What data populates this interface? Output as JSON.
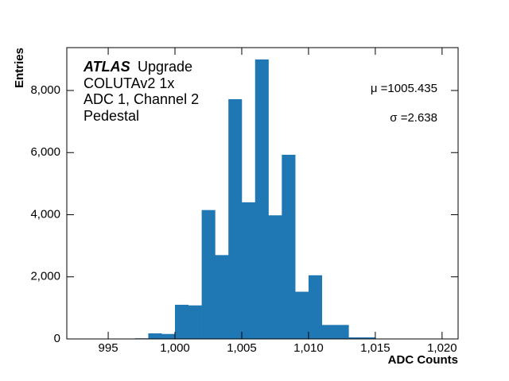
{
  "chart_data": {
    "type": "histogram",
    "xlabel": "ADC Counts",
    "ylabel": "Entries",
    "annotations": {
      "experiment": "ATLAS",
      "experiment_tag": "Upgrade",
      "lines": [
        "COLUTAv2 1x",
        "ADC 1, Channel 2",
        "Pedestal"
      ],
      "mu": "μ =1005.435",
      "sigma": "σ =2.638"
    },
    "bins": [
      997,
      998,
      999,
      1000,
      1001,
      1002,
      1003,
      1004,
      1005,
      1006,
      1007,
      1008,
      1009,
      1010,
      1011,
      1012,
      1013,
      1014,
      1015
    ],
    "counts": [
      20,
      180,
      160,
      1100,
      1080,
      4150,
      2700,
      7720,
      4400,
      9000,
      3980,
      5930,
      1520,
      2050,
      450,
      450,
      50,
      50
    ],
    "color": "#1f77b4",
    "xlim": [
      991.9,
      1021.2
    ],
    "xticks": [
      995,
      {
        "value": 1000,
        "label": "1,000"
      },
      {
        "value": 1005,
        "label": "1,005"
      },
      {
        "value": 1010,
        "label": "1,010"
      },
      {
        "value": 1015,
        "label": "1,015"
      },
      {
        "value": 1020,
        "label": "1,020"
      }
    ],
    "ylim": [
      0,
      9380
    ],
    "yticks": [
      0,
      {
        "value": 2000,
        "label": "2,000"
      },
      {
        "value": 4000,
        "label": "4,000"
      },
      {
        "value": 6000,
        "label": "6,000"
      },
      {
        "value": 8000,
        "label": "8,000"
      }
    ]
  }
}
